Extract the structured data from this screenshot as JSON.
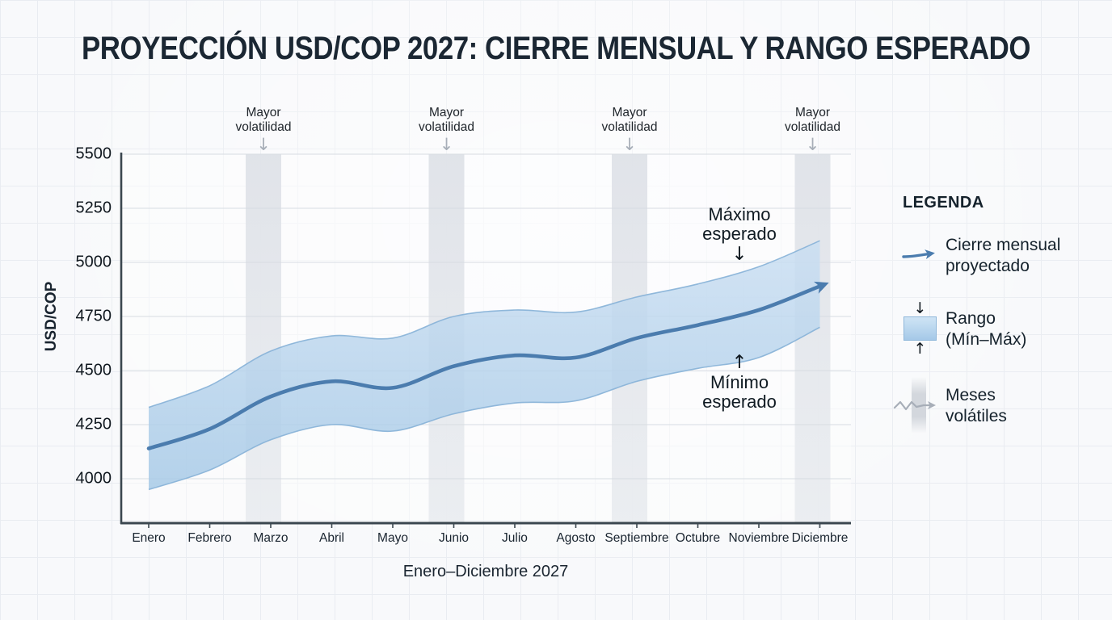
{
  "title": "PROYECCIÓN USD/COP 2027: CIERRE MENSUAL Y RANGO ESPERADO",
  "y_axis_label": "USD/COP",
  "x_axis_title": "Enero–Diciembre 2027",
  "volatility_annotation": {
    "line1": "Mayor",
    "line2": "volatilidad",
    "arrow": "↓"
  },
  "annotations": {
    "max": {
      "line1": "Máximo",
      "line2": "esperado",
      "arrow": "↓"
    },
    "min": {
      "line1": "Mínimo",
      "line2": "esperado",
      "arrow": "↑"
    }
  },
  "legend": {
    "title": "LEGENDA",
    "items": [
      {
        "id": "close-line",
        "line1": "Cierre mensual",
        "line2": "proyectado"
      },
      {
        "id": "range-band",
        "line1": "Rango",
        "line2": "(Mín–Máx)",
        "arrow_down": "↓",
        "arrow_up": "↑"
      },
      {
        "id": "volatile-months",
        "line1": "Meses",
        "line2": "volátiles"
      }
    ]
  },
  "chart_data": {
    "type": "line",
    "title": "PROYECCIÓN USD/COP 2027: CIERRE MENSUAL Y RANGO ESPERADO",
    "xlabel": "Enero–Diciembre 2027",
    "ylabel": "USD/COP",
    "categories": [
      "Enero",
      "Febrero",
      "Marzo",
      "Abril",
      "Mayo",
      "Junio",
      "Julio",
      "Agosto",
      "Septiembre",
      "Octubre",
      "Noviembre",
      "Diciembre"
    ],
    "series": [
      {
        "name": "Cierre mensual proyectado",
        "values": [
          4140,
          4230,
          4380,
          4450,
          4420,
          4520,
          4570,
          4560,
          4650,
          4710,
          4780,
          4890
        ]
      },
      {
        "name": "Mínimo esperado",
        "values": [
          3950,
          4040,
          4180,
          4250,
          4220,
          4300,
          4350,
          4360,
          4450,
          4510,
          4560,
          4700
        ]
      },
      {
        "name": "Máximo esperado",
        "values": [
          4330,
          4430,
          4590,
          4660,
          4650,
          4750,
          4780,
          4770,
          4840,
          4900,
          4980,
          5100
        ]
      }
    ],
    "yticks": [
      4000,
      4250,
      4500,
      4750,
      5000,
      5250,
      5500
    ],
    "ylim": [
      3790,
      5500
    ],
    "grid": true,
    "legend_position": "right",
    "volatile_month_indices": [
      2,
      5,
      8,
      11
    ],
    "volatile_label": "Mayor volatilidad",
    "colors": {
      "line": "#4b7cae",
      "band_fill_top": "#c9def2",
      "band_fill_bottom": "#a4c8e6",
      "band_edge": "#86b1d7",
      "volatile_band": "#e2e5ea",
      "gridline": "#d7dce2",
      "axis": "#3b474f"
    }
  }
}
